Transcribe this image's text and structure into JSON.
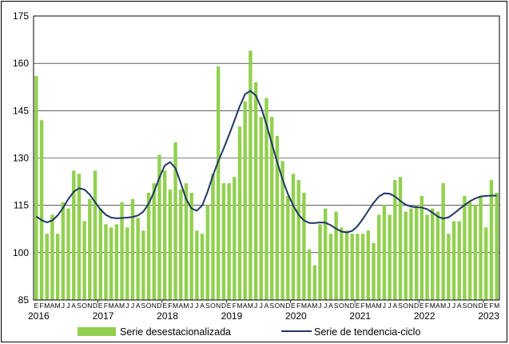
{
  "chart_data": {
    "type": "bar",
    "ylim": [
      85,
      175
    ],
    "yticks": [
      85,
      100,
      115,
      130,
      145,
      160,
      175
    ],
    "month_letters": [
      "E",
      "F",
      "M",
      "A",
      "M",
      "J",
      "J",
      "A",
      "S",
      "O",
      "N",
      "D"
    ],
    "years": [
      "2016",
      "2017",
      "2018",
      "2019",
      "2020",
      "2021",
      "2022",
      "2023"
    ],
    "colors": {
      "bars": "#92d050",
      "trend": "#1f3864"
    },
    "series": [
      {
        "name": "Serie desestacionalizada",
        "kind": "bar",
        "values": [
          156,
          142,
          106,
          112,
          106,
          116,
          114,
          126,
          125,
          110,
          117,
          126,
          114,
          109,
          108,
          109,
          116,
          108,
          117,
          111,
          107,
          119,
          122,
          131,
          126,
          120,
          135,
          120,
          122,
          119,
          107,
          106,
          115,
          125,
          159,
          122,
          122,
          124,
          140,
          148,
          164,
          154,
          143,
          149,
          143,
          137,
          129,
          118,
          125,
          123,
          119,
          101,
          96,
          109,
          114,
          106,
          113,
          108,
          107,
          106,
          106,
          106,
          107,
          103,
          112,
          115,
          112,
          123,
          124,
          113,
          114,
          115,
          118,
          112,
          114,
          113,
          122,
          106,
          110,
          110,
          118,
          116,
          115,
          118,
          108,
          123,
          119
        ]
      },
      {
        "name": "Serie de tendencia-ciclo",
        "kind": "line",
        "values": [
          111.5,
          110.3,
          109.6,
          110.2,
          111.8,
          114.2,
          117.0,
          119.3,
          120.4,
          120.0,
          118.4,
          116.0,
          113.7,
          112.0,
          111.1,
          110.9,
          111.0,
          111.1,
          111.3,
          111.8,
          113.0,
          115.5,
          119.2,
          123.8,
          127.6,
          128.7,
          126.8,
          122.0,
          117.0,
          114.0,
          113.3,
          115.0,
          119.3,
          124.5,
          129.0,
          133.0,
          137.3,
          141.8,
          146.4,
          150.2,
          151.3,
          149.8,
          146.0,
          140.6,
          134.6,
          128.7,
          123.2,
          118.6,
          114.9,
          112.0,
          110.2,
          109.4,
          109.4,
          109.6,
          109.5,
          108.7,
          107.6,
          106.7,
          106.4,
          106.9,
          108.4,
          110.7,
          113.3,
          115.8,
          117.8,
          118.8,
          118.7,
          117.8,
          116.4,
          115.2,
          114.6,
          114.4,
          114.3,
          113.8,
          112.7,
          111.4,
          110.8,
          111.2,
          112.4,
          113.8,
          115.1,
          116.3,
          117.2,
          117.8,
          118.0,
          118.1,
          118.1
        ]
      }
    ]
  }
}
